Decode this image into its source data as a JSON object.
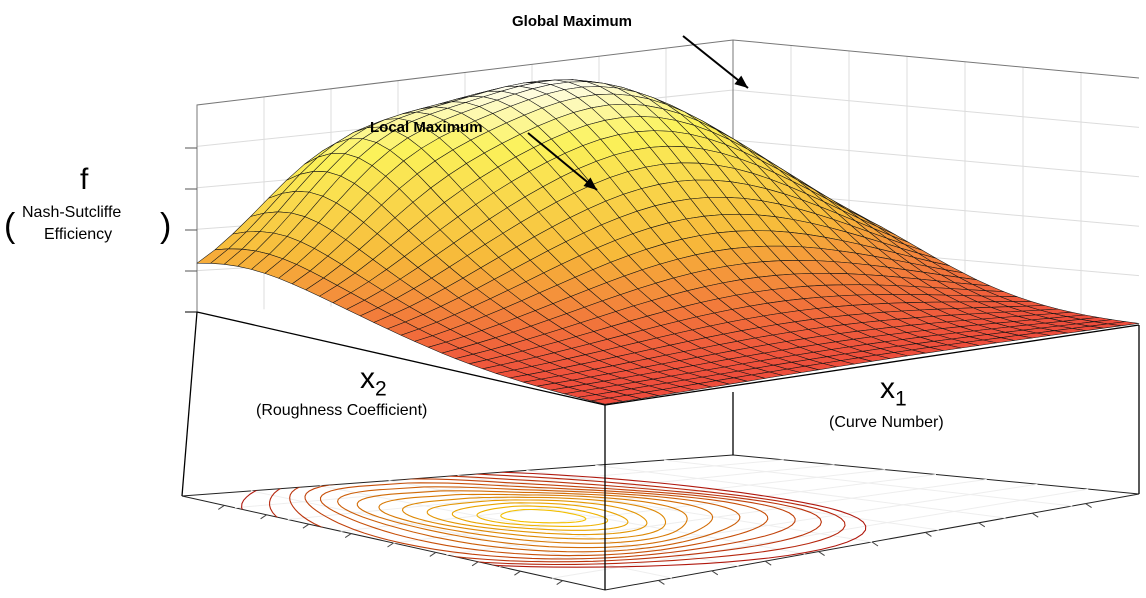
{
  "annotations": {
    "global_max": "Global Maximum",
    "local_max": "Local Maximum"
  },
  "axes": {
    "f": {
      "symbol": "f",
      "name_line1": "Nash-Sutcliffe",
      "name_line2": "Efficiency",
      "open_paren": "(",
      "close_paren": ")"
    },
    "x1": {
      "symbol": "x",
      "subscript": "1",
      "name": "(Curve Number)"
    },
    "x2": {
      "symbol": "x",
      "subscript": "2",
      "name": "(Roughness Coefficient)"
    }
  },
  "colors": {
    "surface_low": "#ee4a3c",
    "surface_mid": "#f7b93a",
    "surface_high": "#fbf25a",
    "surface_peak": "#ffffff",
    "contour_low": "#b0180e",
    "contour_high": "#f4c000",
    "mesh": "#141414",
    "grid": "#dcdcdc",
    "frame": "#000000"
  }
}
